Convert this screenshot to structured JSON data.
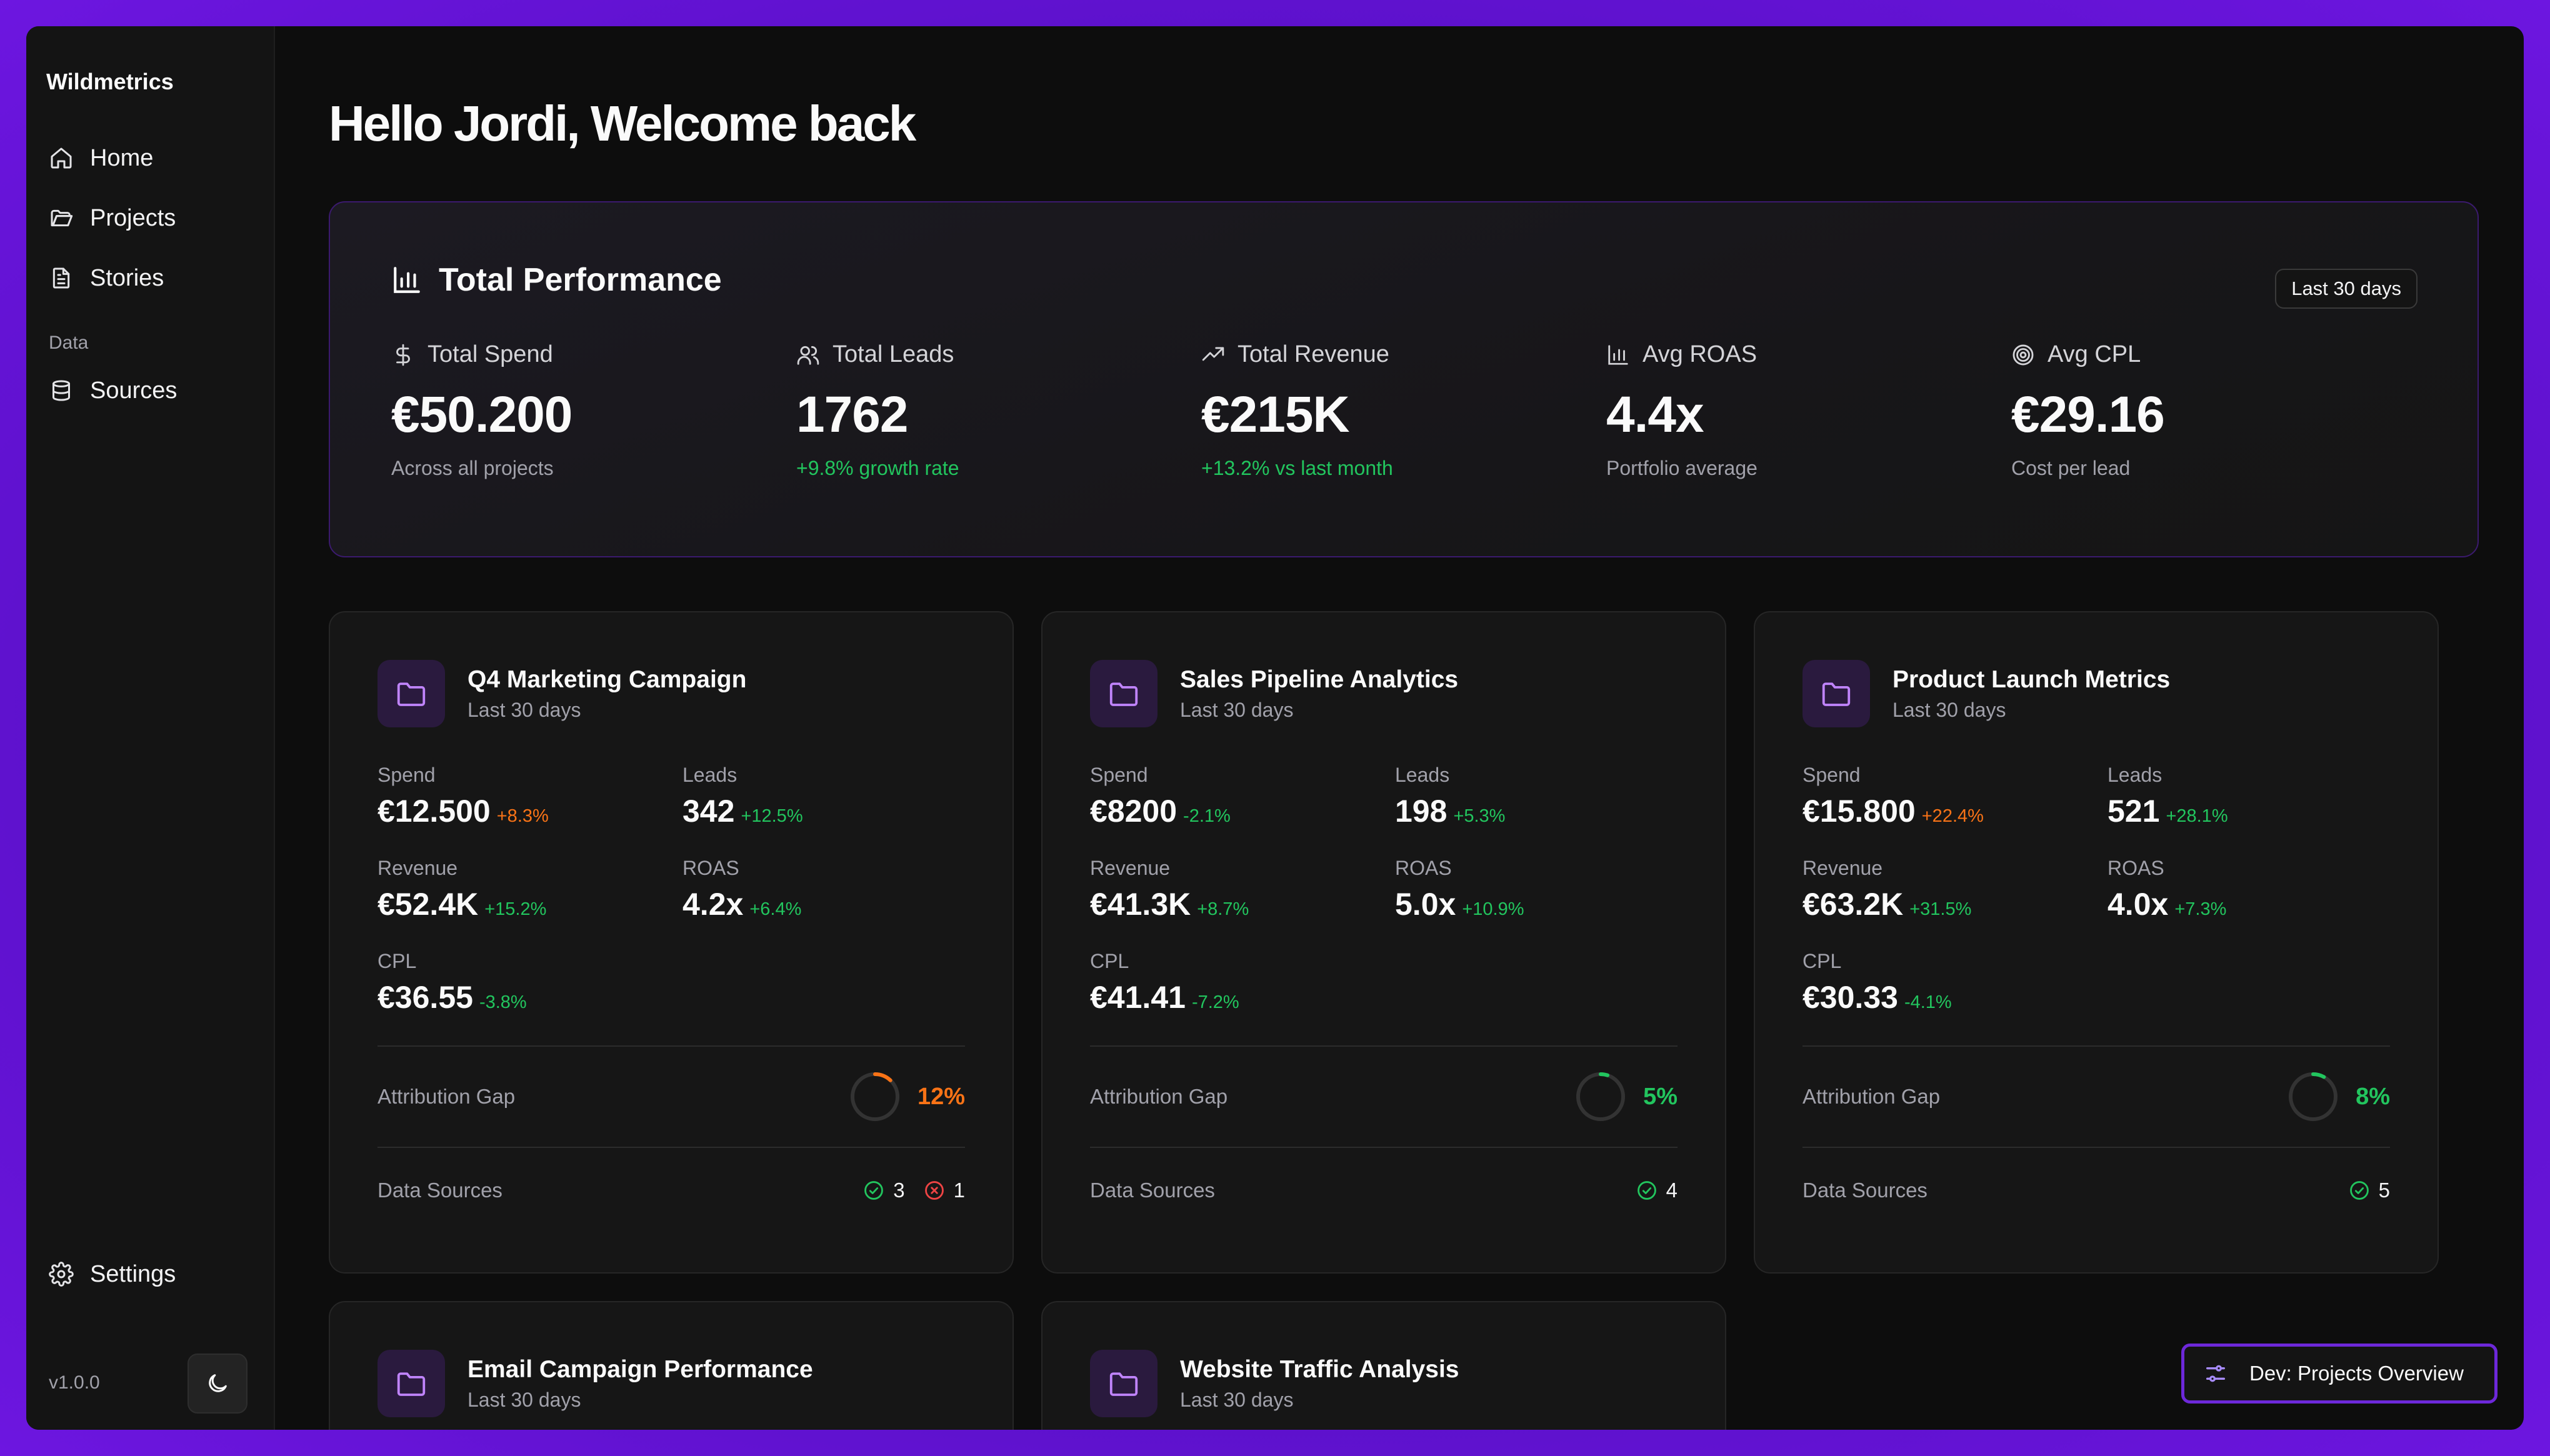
{
  "app": {
    "brand": "Wildmetrics",
    "version": "v1.0.0"
  },
  "sidebar": {
    "items": [
      {
        "label": "Home",
        "icon": "home-icon"
      },
      {
        "label": "Projects",
        "icon": "folder-open-icon"
      },
      {
        "label": "Stories",
        "icon": "document-icon"
      }
    ],
    "section_label": "Data",
    "data_items": [
      {
        "label": "Sources",
        "icon": "database-icon"
      }
    ],
    "settings_label": "Settings"
  },
  "header": {
    "greeting": "Hello Jordi, Welcome back"
  },
  "performance": {
    "title": "Total Performance",
    "range": "Last 30 days",
    "kpis": [
      {
        "label": "Total Spend",
        "icon": "dollar-icon",
        "value": "€50.200",
        "sub": "Across all projects",
        "sub_color": "gray"
      },
      {
        "label": "Total Leads",
        "icon": "users-icon",
        "value": "1762",
        "sub": "+9.8% growth rate",
        "sub_color": "green"
      },
      {
        "label": "Total Revenue",
        "icon": "trending-up-icon",
        "value": "€215K",
        "sub": "+13.2% vs last month",
        "sub_color": "green"
      },
      {
        "label": "Avg ROAS",
        "icon": "bar-chart-icon",
        "value": "4.4x",
        "sub": "Portfolio average",
        "sub_color": "gray"
      },
      {
        "label": "Avg CPL",
        "icon": "target-icon",
        "value": "€29.16",
        "sub": "Cost per lead",
        "sub_color": "gray"
      }
    ]
  },
  "labels": {
    "spend": "Spend",
    "leads": "Leads",
    "revenue": "Revenue",
    "roas": "ROAS",
    "cpl": "CPL",
    "attribution_gap": "Attribution Gap",
    "data_sources": "Data Sources"
  },
  "projects": [
    {
      "title": "Q4 Marketing Campaign",
      "range": "Last 30 days",
      "spend": "€12.500",
      "spend_change": "+8.3%",
      "leads": "342",
      "leads_change": "+12.5%",
      "revenue": "€52.4K",
      "revenue_change": "+15.2%",
      "roas": "4.2x",
      "roas_change": "+6.4%",
      "cpl": "€36.55",
      "cpl_change": "-3.8%",
      "gap": "12%",
      "gap_fraction": 0.12,
      "gap_color": "#f97316",
      "sources_ok": "3",
      "sources_err": "1"
    },
    {
      "title": "Sales Pipeline Analytics",
      "range": "Last 30 days",
      "spend": "€8200",
      "spend_change": "-2.1%",
      "leads": "198",
      "leads_change": "+5.3%",
      "revenue": "€41.3K",
      "revenue_change": "+8.7%",
      "roas": "5.0x",
      "roas_change": "+10.9%",
      "cpl": "€41.41",
      "cpl_change": "-7.2%",
      "gap": "5%",
      "gap_fraction": 0.05,
      "gap_color": "#22c55e",
      "sources_ok": "4"
    },
    {
      "title": "Product Launch Metrics",
      "range": "Last 30 days",
      "spend": "€15.800",
      "spend_change": "+22.4%",
      "leads": "521",
      "leads_change": "+28.1%",
      "revenue": "€63.2K",
      "revenue_change": "+31.5%",
      "roas": "4.0x",
      "roas_change": "+7.3%",
      "cpl": "€30.33",
      "cpl_change": "-4.1%",
      "gap": "8%",
      "gap_fraction": 0.08,
      "gap_color": "#22c55e",
      "sources_ok": "5"
    },
    {
      "title": "Email Campaign Performance",
      "range": "Last 30 days"
    },
    {
      "title": "Website Traffic Analysis",
      "range": "Last 30 days"
    }
  ],
  "dev_button": {
    "label": "Dev: Projects Overview"
  },
  "colors": {
    "accent": "#7c3aed",
    "positive": "#22c55e",
    "warning": "#f97316",
    "error": "#ef4444"
  }
}
